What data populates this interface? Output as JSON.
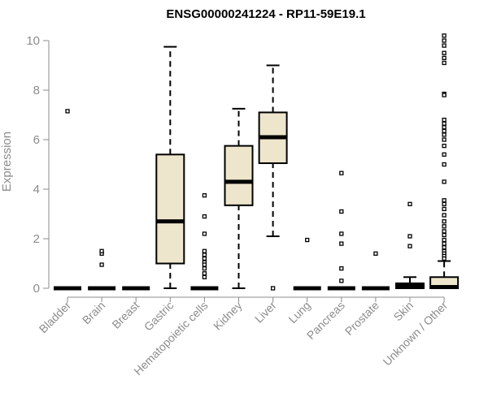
{
  "chart_data": {
    "type": "box",
    "title": "ENSG00000241224 - RP11-59E19.1",
    "xlabel": "",
    "ylabel": "Expression",
    "ylim": [
      0,
      10
    ],
    "yticks": [
      0,
      2,
      4,
      6,
      8,
      10
    ],
    "grid": false,
    "legend": "none",
    "box_fill": "#ede6cc",
    "categories": [
      "Bladder",
      "Brain",
      "Breast",
      "Gastric",
      "Hematopoietic cells",
      "Kidney",
      "Liver",
      "Lung",
      "Pancreas",
      "Prostate",
      "Skin",
      "Unknown / Other"
    ],
    "boxes": [
      {
        "name": "Bladder",
        "min": 0,
        "q1": 0,
        "median": 0,
        "q3": 0,
        "max": 0,
        "outliers": [
          7.15
        ]
      },
      {
        "name": "Brain",
        "min": 0,
        "q1": 0,
        "median": 0,
        "q3": 0,
        "max": 0,
        "outliers": [
          1.4,
          1.5,
          0.95
        ]
      },
      {
        "name": "Breast",
        "min": 0,
        "q1": 0,
        "median": 0,
        "q3": 0,
        "max": 0,
        "outliers": []
      },
      {
        "name": "Gastric",
        "min": 0,
        "q1": 1.0,
        "median": 2.7,
        "q3": 5.4,
        "max": 9.75,
        "outliers": []
      },
      {
        "name": "Hematopoietic cells",
        "min": 0,
        "q1": 0,
        "median": 0,
        "q3": 0,
        "max": 0,
        "outliers": [
          3.75,
          2.9,
          2.2,
          1.5,
          1.35,
          1.2,
          1.05,
          0.95,
          0.8,
          0.6,
          0.45
        ]
      },
      {
        "name": "Kidney",
        "min": 0,
        "q1": 3.35,
        "median": 4.3,
        "q3": 5.75,
        "max": 7.25,
        "outliers": []
      },
      {
        "name": "Liver",
        "min": 2.1,
        "q1": 5.05,
        "median": 6.1,
        "q3": 7.1,
        "max": 9.0,
        "outliers": [
          0
        ]
      },
      {
        "name": "Lung",
        "min": 0,
        "q1": 0,
        "median": 0,
        "q3": 0,
        "max": 0,
        "outliers": [
          1.95
        ]
      },
      {
        "name": "Pancreas",
        "min": 0,
        "q1": 0,
        "median": 0,
        "q3": 0,
        "max": 0,
        "outliers": [
          4.65,
          3.1,
          2.2,
          1.8,
          0.8,
          0.3
        ]
      },
      {
        "name": "Prostate",
        "min": 0,
        "q1": 0,
        "median": 0,
        "q3": 0,
        "max": 0,
        "outliers": [
          1.4
        ]
      },
      {
        "name": "Skin",
        "min": 0,
        "q1": 0,
        "median": 0.1,
        "q3": 0.2,
        "max": 0.45,
        "outliers": [
          3.4,
          2.1,
          1.7
        ]
      },
      {
        "name": "Unknown / Other",
        "min": 0,
        "q1": 0,
        "median": 0.05,
        "q3": 0.45,
        "max": 1.1,
        "outliers": [
          10.2,
          10.0,
          9.8,
          9.5,
          9.3,
          9.1,
          7.85,
          7.8,
          6.8,
          6.65,
          6.5,
          6.35,
          6.2,
          6.0,
          5.75,
          5.4,
          5.0,
          4.3,
          3.55,
          3.4,
          3.2,
          2.95,
          2.7,
          2.5,
          2.3,
          2.15,
          1.95,
          1.8,
          1.65,
          1.5,
          1.4,
          1.3,
          1.2
        ]
      }
    ]
  }
}
